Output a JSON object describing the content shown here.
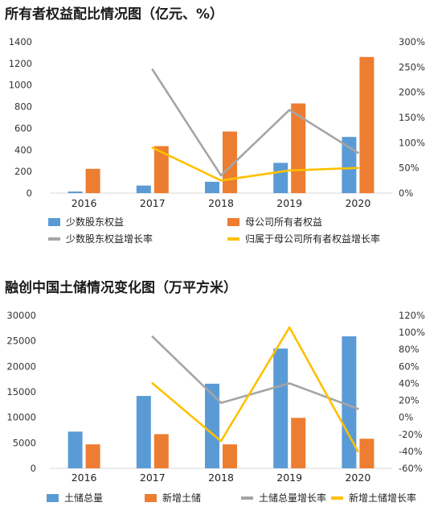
{
  "chart_data": [
    {
      "type": "bar",
      "title": "所有者权益配比情况图（亿元、%）",
      "categories": [
        "2016",
        "2017",
        "2018",
        "2019",
        "2020"
      ],
      "y_left": {
        "ylim": [
          0,
          1400
        ],
        "ticks": [
          "0",
          "200",
          "400",
          "600",
          "800",
          "1000",
          "1200",
          "1400"
        ]
      },
      "y_right": {
        "ylim": [
          0,
          300
        ],
        "ticks": [
          "0%",
          "50%",
          "100%",
          "150%",
          "200%",
          "250%",
          "300%"
        ]
      },
      "series": [
        {
          "name": "少数股东权益",
          "type": "bar",
          "axis": "left",
          "color": "#5B9BD5",
          "values": [
            15,
            70,
            105,
            280,
            520
          ]
        },
        {
          "name": "母公司所有者权益",
          "type": "bar",
          "axis": "left",
          "color": "#ED7D31",
          "values": [
            225,
            435,
            570,
            830,
            1260
          ]
        },
        {
          "name": "少数股东权益增长率",
          "type": "line",
          "axis": "right",
          "color": "#A5A5A5",
          "values": [
            null,
            245,
            35,
            165,
            80
          ]
        },
        {
          "name": "归属于母公司所有者权益增长率",
          "type": "line",
          "axis": "right",
          "color": "#FFC000",
          "values": [
            null,
            90,
            25,
            45,
            50
          ]
        }
      ],
      "legend": "bottom"
    },
    {
      "type": "bar",
      "title": "融创中国土储情况变化图（万平方米）",
      "categories": [
        "2016",
        "2017",
        "2018",
        "2019",
        "2020"
      ],
      "y_left": {
        "ylim": [
          0,
          30000
        ],
        "ticks": [
          "0",
          "5000",
          "10000",
          "15000",
          "20000",
          "25000",
          "30000"
        ]
      },
      "y_right": {
        "ylim": [
          -60,
          120
        ],
        "ticks": [
          "-60%",
          "-40%",
          "-20%",
          "0%",
          "20%",
          "40%",
          "60%",
          "80%",
          "100%",
          "120%"
        ]
      },
      "series": [
        {
          "name": "土储总量",
          "type": "bar",
          "axis": "left",
          "color": "#5B9BD5",
          "values": [
            7200,
            14200,
            16600,
            23500,
            25900
          ]
        },
        {
          "name": "新增土储",
          "type": "bar",
          "axis": "left",
          "color": "#ED7D31",
          "values": [
            4700,
            6700,
            4700,
            9900,
            5800
          ]
        },
        {
          "name": "土储总量增长率",
          "type": "line",
          "axis": "right",
          "color": "#A5A5A5",
          "values": [
            null,
            95,
            17,
            40,
            10
          ]
        },
        {
          "name": "新增土储增长率",
          "type": "line",
          "axis": "right",
          "color": "#FFC000",
          "values": [
            null,
            40,
            -28,
            106,
            -40
          ]
        }
      ],
      "legend": "bottom"
    }
  ]
}
